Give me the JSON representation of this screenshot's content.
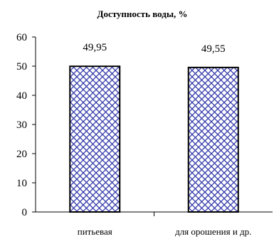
{
  "chart_data": {
    "type": "bar",
    "title": "Доступность воды, %",
    "categories": [
      "питьевая",
      "для орошения и др."
    ],
    "values": [
      49.95,
      49.55
    ],
    "data_labels": [
      "49,95",
      "49,55"
    ],
    "ylim": [
      0,
      60
    ],
    "yticks": [
      0,
      10,
      20,
      30,
      40,
      50,
      60
    ],
    "grid": false,
    "legend": "none",
    "bar_fill": "crosshatch",
    "colors": {
      "hatch": "#2f36a8",
      "bar_fill": "#ffffff",
      "outline": "#000000"
    }
  }
}
